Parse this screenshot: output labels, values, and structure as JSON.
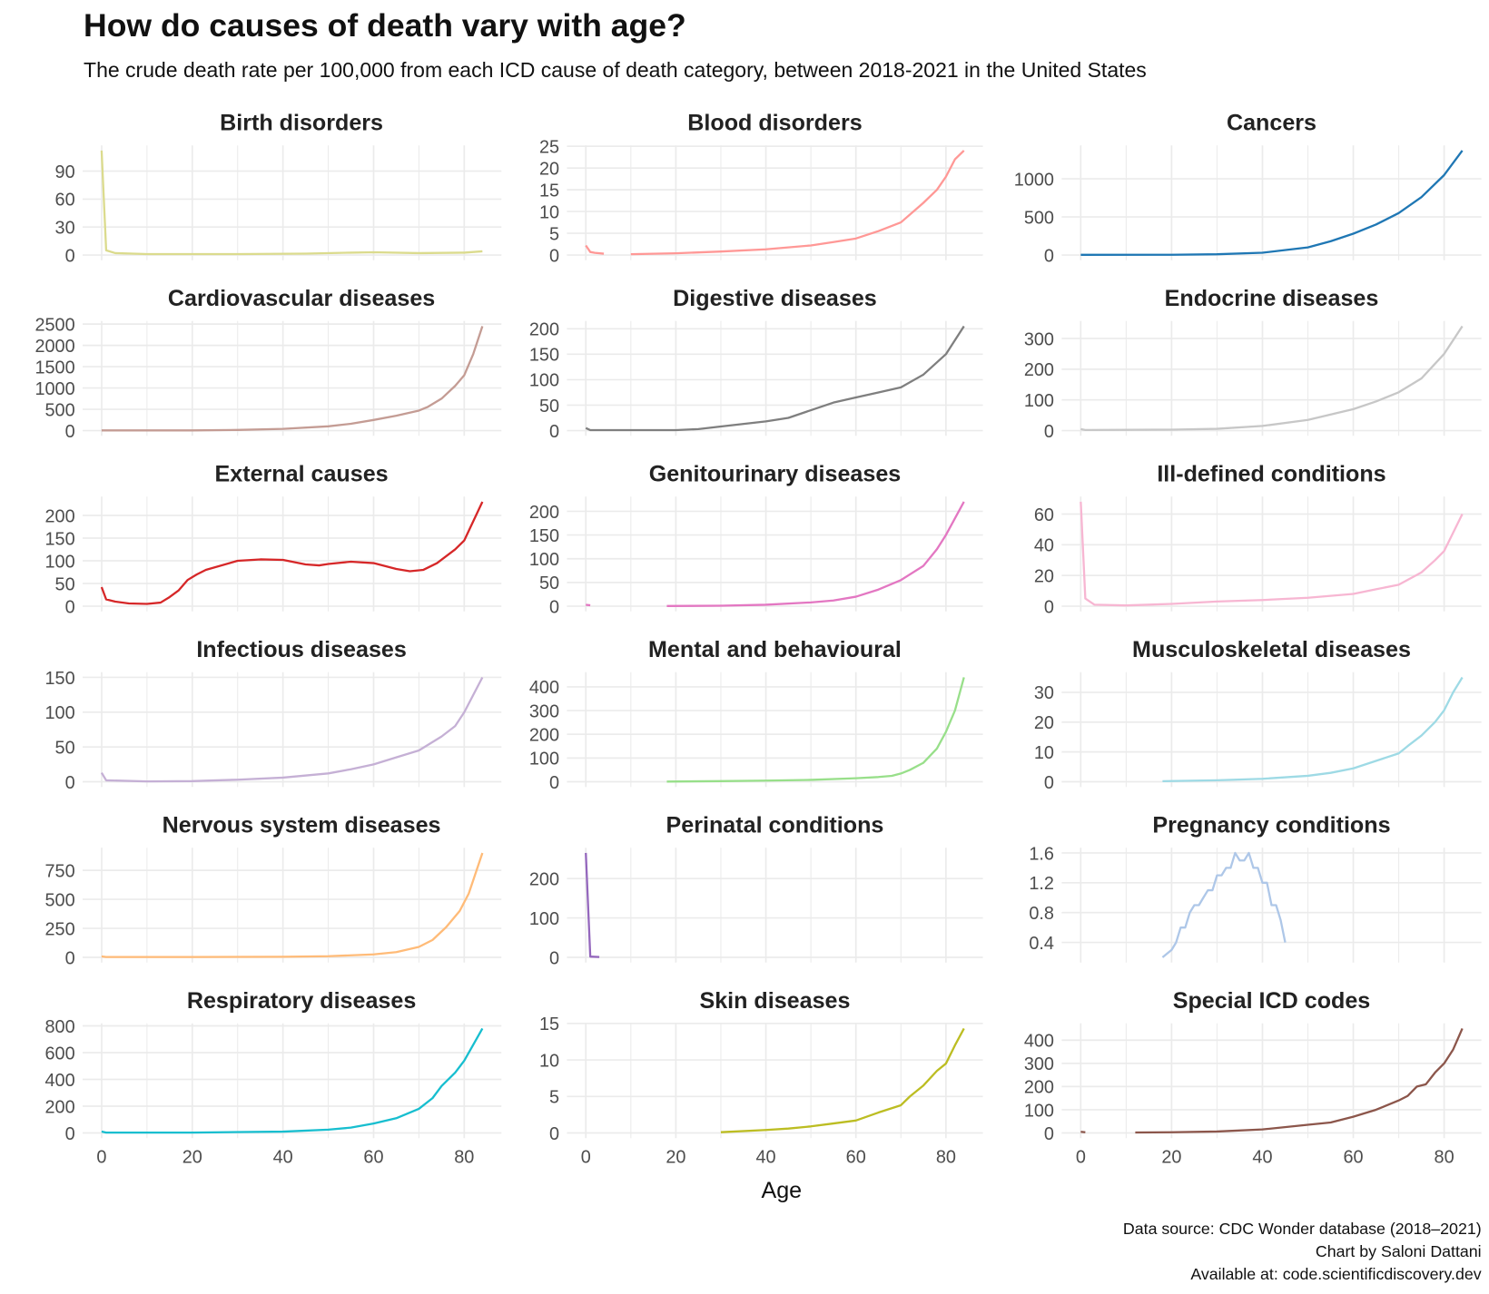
{
  "chart_data": {
    "type": "line",
    "title": "How do causes of death vary with age?",
    "subtitle": "The crude death rate per 100,000 from each ICD cause of death category, between 2018-2021 in the United States",
    "xlabel": "Age",
    "ylabel": "",
    "xlim": [
      0,
      84
    ],
    "x_ticks": [
      0,
      20,
      40,
      60,
      80
    ],
    "grid": true,
    "facet_layout": "3 columns x 6 rows, free y scales",
    "facets": [
      {
        "name": "Birth disorders",
        "color": "#dbdb8d",
        "y_ticks": [
          0,
          30,
          60,
          90
        ],
        "points": [
          [
            0,
            112
          ],
          [
            1,
            5
          ],
          [
            3,
            2
          ],
          [
            10,
            1
          ],
          [
            30,
            1
          ],
          [
            45,
            1.5
          ],
          [
            55,
            2.5
          ],
          [
            60,
            3
          ],
          [
            70,
            2
          ],
          [
            80,
            2.5
          ],
          [
            84,
            4
          ]
        ]
      },
      {
        "name": "Blood disorders",
        "color": "#ff9896",
        "y_ticks": [
          0,
          5,
          10,
          15,
          20,
          25
        ],
        "points": [
          [
            0,
            2.2
          ],
          [
            1,
            0.7
          ],
          [
            2,
            0.5
          ],
          [
            4,
            0.3
          ],
          null,
          [
            10,
            0.2
          ],
          [
            20,
            0.4
          ],
          [
            30,
            0.8
          ],
          [
            40,
            1.3
          ],
          [
            50,
            2.2
          ],
          [
            55,
            3
          ],
          [
            60,
            3.8
          ],
          [
            65,
            5.5
          ],
          [
            70,
            7.5
          ],
          [
            75,
            12
          ],
          [
            78,
            15
          ],
          [
            80,
            18
          ],
          [
            82,
            22
          ],
          [
            84,
            24
          ]
        ]
      },
      {
        "name": "Cancers",
        "color": "#1f77b4",
        "y_ticks": [
          0,
          500,
          1000
        ],
        "points": [
          [
            0,
            2
          ],
          [
            20,
            4
          ],
          [
            30,
            10
          ],
          [
            40,
            30
          ],
          [
            50,
            100
          ],
          [
            55,
            180
          ],
          [
            60,
            280
          ],
          [
            65,
            400
          ],
          [
            70,
            550
          ],
          [
            75,
            760
          ],
          [
            80,
            1050
          ],
          [
            84,
            1370
          ]
        ]
      },
      {
        "name": "Cardiovascular diseases",
        "color": "#c49c94",
        "y_ticks": [
          0,
          500,
          1000,
          1500,
          2000,
          2500
        ],
        "points": [
          [
            0,
            5
          ],
          [
            20,
            5
          ],
          [
            30,
            15
          ],
          [
            40,
            40
          ],
          [
            50,
            100
          ],
          [
            55,
            160
          ],
          [
            60,
            250
          ],
          [
            65,
            350
          ],
          [
            70,
            470
          ],
          [
            72,
            560
          ],
          [
            75,
            750
          ],
          [
            78,
            1050
          ],
          [
            80,
            1300
          ],
          [
            82,
            1800
          ],
          [
            84,
            2450
          ]
        ]
      },
      {
        "name": "Digestive diseases",
        "color": "#7f7f7f",
        "y_ticks": [
          0,
          50,
          100,
          150,
          200
        ],
        "points": [
          [
            0,
            5
          ],
          [
            1,
            1
          ],
          [
            20,
            1
          ],
          [
            25,
            3
          ],
          [
            30,
            8
          ],
          [
            40,
            18
          ],
          [
            45,
            25
          ],
          [
            50,
            40
          ],
          [
            55,
            55
          ],
          [
            60,
            65
          ],
          [
            65,
            75
          ],
          [
            70,
            85
          ],
          [
            75,
            110
          ],
          [
            80,
            150
          ],
          [
            84,
            205
          ]
        ]
      },
      {
        "name": "Endocrine diseases",
        "color": "#c7c7c7",
        "y_ticks": [
          0,
          100,
          200,
          300
        ],
        "points": [
          [
            0,
            5
          ],
          [
            1,
            2
          ],
          [
            20,
            3
          ],
          [
            30,
            6
          ],
          [
            40,
            15
          ],
          [
            50,
            35
          ],
          [
            60,
            70
          ],
          [
            65,
            95
          ],
          [
            70,
            125
          ],
          [
            75,
            170
          ],
          [
            80,
            250
          ],
          [
            84,
            340
          ]
        ]
      },
      {
        "name": "External causes",
        "color": "#d62728",
        "y_ticks": [
          0,
          50,
          100,
          150,
          200
        ],
        "points": [
          [
            0,
            42
          ],
          [
            1,
            15
          ],
          [
            3,
            10
          ],
          [
            6,
            6
          ],
          [
            10,
            5
          ],
          [
            13,
            8
          ],
          [
            15,
            20
          ],
          [
            17,
            35
          ],
          [
            19,
            58
          ],
          [
            21,
            70
          ],
          [
            23,
            80
          ],
          [
            30,
            100
          ],
          [
            35,
            103
          ],
          [
            40,
            102
          ],
          [
            45,
            92
          ],
          [
            48,
            90
          ],
          [
            50,
            93
          ],
          [
            55,
            98
          ],
          [
            60,
            95
          ],
          [
            65,
            82
          ],
          [
            68,
            77
          ],
          [
            71,
            80
          ],
          [
            74,
            95
          ],
          [
            78,
            125
          ],
          [
            80,
            145
          ],
          [
            84,
            230
          ]
        ]
      },
      {
        "name": "Genitourinary diseases",
        "color": "#e377c2",
        "y_ticks": [
          0,
          50,
          100,
          150,
          200
        ],
        "points": [
          [
            0,
            3
          ],
          [
            1,
            2
          ],
          null,
          [
            18,
            0.5
          ],
          [
            30,
            1
          ],
          [
            40,
            3
          ],
          [
            50,
            8
          ],
          [
            55,
            12
          ],
          [
            60,
            20
          ],
          [
            65,
            35
          ],
          [
            70,
            55
          ],
          [
            75,
            85
          ],
          [
            78,
            120
          ],
          [
            80,
            150
          ],
          [
            84,
            220
          ]
        ]
      },
      {
        "name": "Ill-defined conditions",
        "color": "#f7b6d2",
        "y_ticks": [
          0,
          20,
          40,
          60
        ],
        "points": [
          [
            0,
            68
          ],
          [
            1,
            5
          ],
          [
            3,
            1
          ],
          [
            10,
            0.5
          ],
          [
            20,
            1.5
          ],
          [
            30,
            3
          ],
          [
            40,
            4
          ],
          [
            50,
            5.5
          ],
          [
            60,
            8
          ],
          [
            65,
            11
          ],
          [
            70,
            14
          ],
          [
            75,
            22
          ],
          [
            78,
            30
          ],
          [
            80,
            36
          ],
          [
            84,
            60
          ]
        ]
      },
      {
        "name": "Infectious diseases",
        "color": "#c5b0d5",
        "y_ticks": [
          0,
          50,
          100,
          150
        ],
        "points": [
          [
            0,
            13
          ],
          [
            1,
            2
          ],
          [
            10,
            0.5
          ],
          [
            20,
            1
          ],
          [
            30,
            3
          ],
          [
            40,
            6
          ],
          [
            50,
            12
          ],
          [
            55,
            18
          ],
          [
            60,
            25
          ],
          [
            65,
            35
          ],
          [
            70,
            45
          ],
          [
            75,
            65
          ],
          [
            78,
            80
          ],
          [
            80,
            100
          ],
          [
            84,
            150
          ]
        ]
      },
      {
        "name": "Mental and behavioural",
        "color": "#98df8a",
        "y_ticks": [
          0,
          100,
          200,
          300,
          400
        ],
        "points": [
          [
            18,
            1
          ],
          [
            30,
            3
          ],
          [
            40,
            5
          ],
          [
            50,
            8
          ],
          [
            60,
            15
          ],
          [
            65,
            20
          ],
          [
            68,
            25
          ],
          [
            70,
            35
          ],
          [
            72,
            50
          ],
          [
            75,
            80
          ],
          [
            78,
            140
          ],
          [
            80,
            210
          ],
          [
            82,
            300
          ],
          [
            84,
            440
          ]
        ]
      },
      {
        "name": "Musculoskeletal diseases",
        "color": "#9edae5",
        "y_ticks": [
          0,
          10,
          20,
          30
        ],
        "points": [
          [
            18,
            0.2
          ],
          [
            30,
            0.5
          ],
          [
            40,
            1
          ],
          [
            50,
            2
          ],
          [
            55,
            3
          ],
          [
            60,
            4.5
          ],
          [
            65,
            7
          ],
          [
            70,
            9.5
          ],
          [
            72,
            12
          ],
          [
            75,
            15.5
          ],
          [
            78,
            20
          ],
          [
            80,
            24
          ],
          [
            82,
            30
          ],
          [
            84,
            35
          ]
        ]
      },
      {
        "name": "Nervous system diseases",
        "color": "#ffbb78",
        "y_ticks": [
          0,
          250,
          500,
          750
        ],
        "points": [
          [
            0,
            8
          ],
          [
            1,
            3
          ],
          [
            20,
            3
          ],
          [
            40,
            5
          ],
          [
            50,
            10
          ],
          [
            60,
            25
          ],
          [
            65,
            45
          ],
          [
            70,
            90
          ],
          [
            73,
            150
          ],
          [
            76,
            260
          ],
          [
            79,
            400
          ],
          [
            81,
            550
          ],
          [
            84,
            900
          ]
        ]
      },
      {
        "name": "Perinatal conditions",
        "color": "#9467bd",
        "y_ticks": [
          0,
          100,
          200
        ],
        "points": [
          [
            0,
            265
          ],
          [
            1,
            2
          ],
          [
            3,
            1
          ]
        ]
      },
      {
        "name": "Pregnancy conditions",
        "color": "#aec7e8",
        "y_ticks": [
          0.4,
          0.8,
          1.2,
          1.6
        ],
        "points": [
          [
            18,
            0.2
          ],
          [
            20,
            0.3
          ],
          [
            21,
            0.4
          ],
          [
            22,
            0.6
          ],
          [
            23,
            0.6
          ],
          [
            24,
            0.8
          ],
          [
            25,
            0.9
          ],
          [
            26,
            0.9
          ],
          [
            27,
            1.0
          ],
          [
            28,
            1.1
          ],
          [
            29,
            1.1
          ],
          [
            30,
            1.3
          ],
          [
            31,
            1.3
          ],
          [
            32,
            1.4
          ],
          [
            33,
            1.4
          ],
          [
            34,
            1.6
          ],
          [
            35,
            1.5
          ],
          [
            36,
            1.5
          ],
          [
            37,
            1.6
          ],
          [
            38,
            1.4
          ],
          [
            39,
            1.4
          ],
          [
            40,
            1.2
          ],
          [
            41,
            1.2
          ],
          [
            42,
            0.9
          ],
          [
            43,
            0.9
          ],
          [
            44,
            0.7
          ],
          [
            45,
            0.4
          ]
        ]
      },
      {
        "name": "Respiratory diseases",
        "color": "#17becf",
        "y_ticks": [
          0,
          200,
          400,
          600,
          800
        ],
        "points": [
          [
            0,
            10
          ],
          [
            1,
            3
          ],
          [
            20,
            3
          ],
          [
            40,
            10
          ],
          [
            50,
            25
          ],
          [
            55,
            40
          ],
          [
            60,
            70
          ],
          [
            65,
            110
          ],
          [
            70,
            180
          ],
          [
            73,
            260
          ],
          [
            75,
            350
          ],
          [
            78,
            450
          ],
          [
            80,
            540
          ],
          [
            84,
            780
          ]
        ]
      },
      {
        "name": "Skin diseases",
        "color": "#bcbd22",
        "y_ticks": [
          0,
          5,
          10,
          15
        ],
        "points": [
          [
            30,
            0.1
          ],
          [
            40,
            0.4
          ],
          [
            45,
            0.6
          ],
          [
            50,
            0.9
          ],
          [
            55,
            1.3
          ],
          [
            60,
            1.7
          ],
          [
            65,
            2.8
          ],
          [
            70,
            3.8
          ],
          [
            72,
            5
          ],
          [
            75,
            6.5
          ],
          [
            78,
            8.5
          ],
          [
            80,
            9.5
          ],
          [
            82,
            12
          ],
          [
            84,
            14.3
          ]
        ]
      },
      {
        "name": "Special ICD codes",
        "color": "#8c564b",
        "y_ticks": [
          0,
          100,
          200,
          300,
          400
        ],
        "points": [
          [
            0,
            5
          ],
          [
            1,
            3
          ],
          null,
          [
            12,
            2
          ],
          [
            20,
            3
          ],
          [
            30,
            6
          ],
          [
            40,
            15
          ],
          [
            50,
            35
          ],
          [
            55,
            45
          ],
          [
            60,
            70
          ],
          [
            65,
            100
          ],
          [
            70,
            140
          ],
          [
            72,
            160
          ],
          [
            74,
            200
          ],
          [
            76,
            210
          ],
          [
            78,
            260
          ],
          [
            80,
            300
          ],
          [
            82,
            360
          ],
          [
            84,
            450
          ]
        ]
      }
    ]
  },
  "footer": {
    "source": "Data source: CDC Wonder database (2018–2021)",
    "author": "Chart by Saloni Dattani",
    "available": "Available at: code.scientificdiscovery.dev"
  }
}
